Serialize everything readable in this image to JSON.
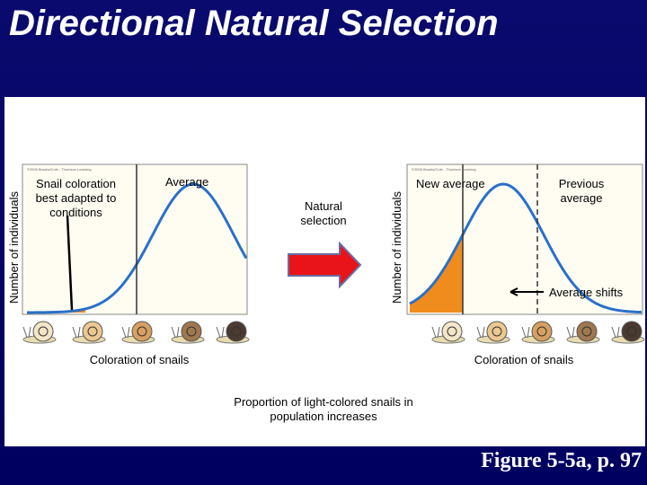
{
  "title": "Directional Natural Selection",
  "panels": [
    {
      "y_axis_label": "Number of individuals",
      "copyright": "©2006 Brooks/Cole - Thomson Learning",
      "annotations": [
        "Snail coloration best adapted to conditions",
        "Average"
      ],
      "x_axis_label": "Coloration of snails"
    },
    {
      "y_axis_label": "Number of individuals",
      "copyright": "©2006 Brooks/Cole - Thomson Learning",
      "annotations": [
        "New average",
        "Previous average",
        "Average shifts"
      ],
      "x_axis_label": "Coloration of snails"
    }
  ],
  "arrow_label": "Natural selection",
  "caption": "Proportion of light-colored snails in population increases",
  "figure_ref": "Figure 5-5a, p. 97"
}
